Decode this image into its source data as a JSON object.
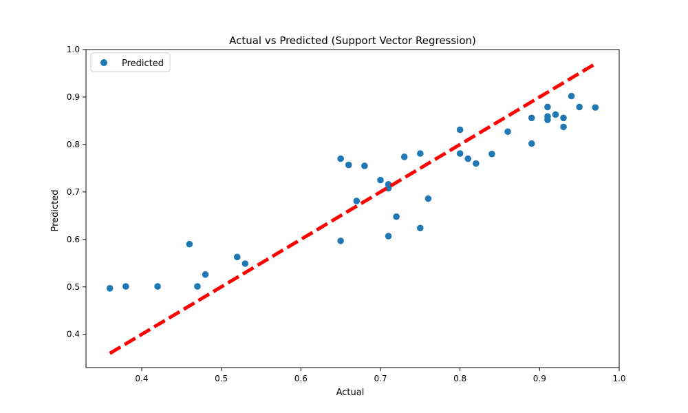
{
  "chart_data": {
    "type": "scatter",
    "title": "Actual vs Predicted (Support Vector Regression)",
    "xlabel": "Actual",
    "ylabel": "Predicted",
    "xlim": [
      0.33,
      1.0
    ],
    "ylim": [
      0.33,
      1.0
    ],
    "xticks": [
      0.4,
      0.5,
      0.6,
      0.7,
      0.8,
      0.9,
      1.0
    ],
    "yticks": [
      0.4,
      0.5,
      0.6,
      0.7,
      0.8,
      0.9,
      1.0
    ],
    "grid": false,
    "legend": {
      "position": "top-left",
      "entries": [
        "Predicted"
      ]
    },
    "series": [
      {
        "name": "Predicted",
        "color": "#1f77b4",
        "marker": "circle",
        "points": [
          [
            0.36,
            0.497
          ],
          [
            0.38,
            0.501
          ],
          [
            0.42,
            0.501
          ],
          [
            0.46,
            0.59
          ],
          [
            0.47,
            0.501
          ],
          [
            0.48,
            0.526
          ],
          [
            0.52,
            0.563
          ],
          [
            0.53,
            0.549
          ],
          [
            0.65,
            0.77
          ],
          [
            0.65,
            0.597
          ],
          [
            0.66,
            0.757
          ],
          [
            0.67,
            0.681
          ],
          [
            0.68,
            0.755
          ],
          [
            0.7,
            0.725
          ],
          [
            0.71,
            0.716
          ],
          [
            0.71,
            0.708
          ],
          [
            0.71,
            0.607
          ],
          [
            0.72,
            0.648
          ],
          [
            0.73,
            0.774
          ],
          [
            0.75,
            0.781
          ],
          [
            0.75,
            0.624
          ],
          [
            0.76,
            0.686
          ],
          [
            0.8,
            0.831
          ],
          [
            0.8,
            0.781
          ],
          [
            0.81,
            0.77
          ],
          [
            0.82,
            0.76
          ],
          [
            0.84,
            0.78
          ],
          [
            0.86,
            0.827
          ],
          [
            0.89,
            0.856
          ],
          [
            0.89,
            0.802
          ],
          [
            0.91,
            0.879
          ],
          [
            0.91,
            0.859
          ],
          [
            0.91,
            0.852
          ],
          [
            0.92,
            0.863
          ],
          [
            0.93,
            0.856
          ],
          [
            0.93,
            0.837
          ],
          [
            0.94,
            0.902
          ],
          [
            0.95,
            0.879
          ],
          [
            0.97,
            0.878
          ]
        ]
      }
    ],
    "reference_line": {
      "x": [
        0.36,
        0.97
      ],
      "y": [
        0.36,
        0.97
      ],
      "color": "#ff0000",
      "style": "dashed"
    }
  }
}
